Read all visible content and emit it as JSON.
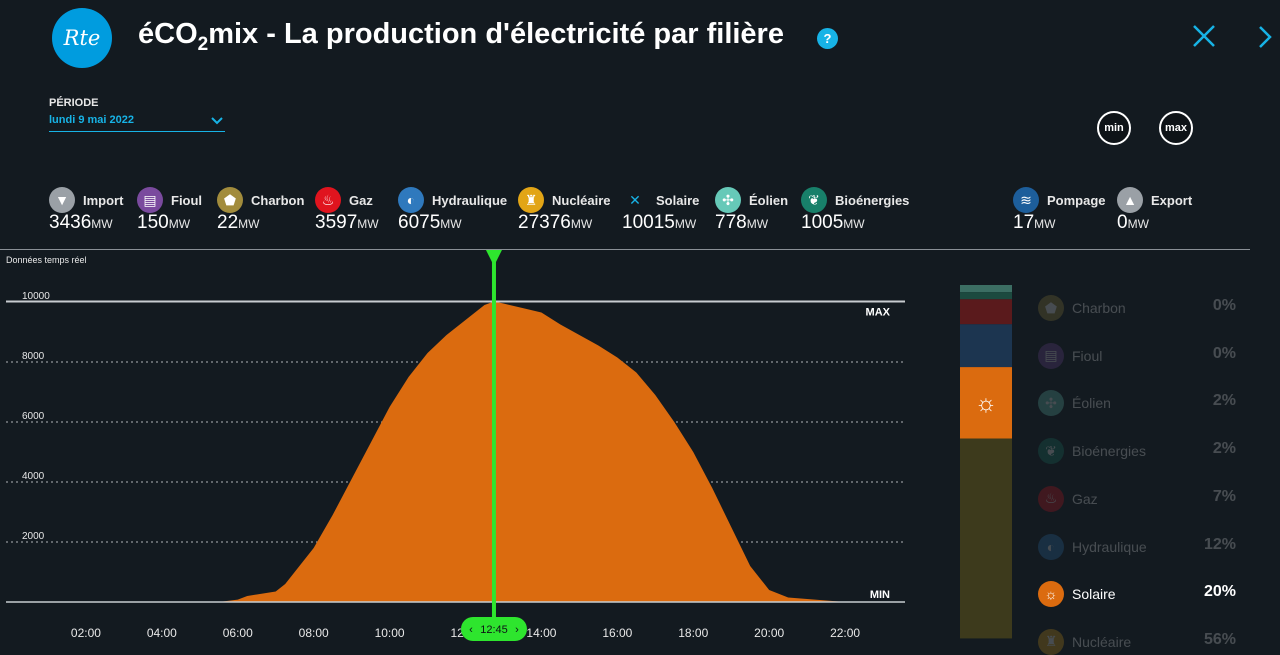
{
  "header": {
    "logo_text": "Rte",
    "title_pre": "éCO",
    "title_sub": "2",
    "title_post": "mix - La production d'électricité par filière",
    "help": "?"
  },
  "period": {
    "label": "PÉRIODE",
    "value": "lundi 9 mai 2022"
  },
  "buttons": {
    "min": "min",
    "max": "max"
  },
  "unit": "MW",
  "sources": [
    {
      "name": "Import",
      "value": "3436",
      "color": "#9aa0a6",
      "icon": "import-icon"
    },
    {
      "name": "Fioul",
      "value": "150",
      "color": "#7a4a9e",
      "icon": "fioul-icon"
    },
    {
      "name": "Charbon",
      "value": "22",
      "color": "#a28c3c",
      "icon": "charbon-icon"
    },
    {
      "name": "Gaz",
      "value": "3597",
      "color": "#e0141e",
      "icon": "gaz-icon"
    },
    {
      "name": "Hydraulique",
      "value": "6075",
      "color": "#2f79bd",
      "icon": "hydraulique-icon"
    },
    {
      "name": "Nucléaire",
      "value": "27376",
      "color": "#e2a516",
      "icon": "nucleaire-icon"
    },
    {
      "name": "Solaire",
      "value": "10015",
      "color": "#17b3e6",
      "icon": "solaire-icon"
    },
    {
      "name": "Éolien",
      "value": "778",
      "color": "#66c9b8",
      "icon": "eolien-icon"
    },
    {
      "name": "Bioénergies",
      "value": "1005",
      "color": "#18806a",
      "icon": "bioenergies-icon"
    },
    {
      "name": "Pompage",
      "value": "17",
      "color": "#1d5e9b",
      "icon": "pompage-icon"
    },
    {
      "name": "Export",
      "value": "0",
      "color": "#9aa0a6",
      "icon": "export-icon"
    }
  ],
  "chart_header": "Données temps réel",
  "cursor_time": "12:45",
  "chart_data": {
    "type": "area",
    "x": [
      "00:00",
      "00:30",
      "01:00",
      "01:30",
      "02:00",
      "02:30",
      "03:00",
      "03:30",
      "04:00",
      "04:30",
      "05:00",
      "05:30",
      "06:00",
      "06:15",
      "06:30",
      "07:00",
      "07:15",
      "07:30",
      "08:00",
      "08:30",
      "09:00",
      "09:30",
      "10:00",
      "10:30",
      "11:00",
      "11:30",
      "12:00",
      "12:15",
      "12:30",
      "12:45",
      "13:00",
      "13:30",
      "14:00",
      "14:30",
      "15:00",
      "15:30",
      "16:00",
      "16:30",
      "17:00",
      "17:30",
      "18:00",
      "18:30",
      "19:00",
      "19:30",
      "20:00",
      "20:30",
      "21:00",
      "21:30",
      "22:00",
      "22:30",
      "23:00",
      "23:30"
    ],
    "y": [
      0,
      0,
      0,
      0,
      0,
      0,
      0,
      0,
      0,
      0,
      0,
      0,
      80,
      200,
      250,
      350,
      600,
      1000,
      1800,
      2900,
      4100,
      5300,
      6500,
      7500,
      8300,
      8900,
      9400,
      9650,
      9900,
      10015,
      9950,
      9800,
      9650,
      9250,
      8900,
      8550,
      8150,
      7650,
      6900,
      6000,
      5000,
      3800,
      2500,
      1200,
      400,
      150,
      100,
      50,
      0,
      0,
      0,
      0
    ],
    "xticks": [
      "02:00",
      "04:00",
      "06:00",
      "08:00",
      "10:00",
      "12:00",
      "14:00",
      "16:00",
      "18:00",
      "20:00",
      "22:00"
    ],
    "yticks": [
      2000,
      4000,
      6000,
      8000,
      10000
    ],
    "ylim": [
      0,
      10000
    ],
    "max_label": "MAX",
    "min_label": "MIN",
    "max_value": 10015,
    "min_value": 0,
    "color": "#db6b0f",
    "grid": true
  },
  "legend": [
    {
      "name": "Charbon",
      "pct": "0%",
      "color": "#a28c3c",
      "icon": "charbon-icon",
      "active": false
    },
    {
      "name": "Fioul",
      "pct": "0%",
      "color": "#7a4a9e",
      "icon": "fioul-icon",
      "active": false
    },
    {
      "name": "Éolien",
      "pct": "2%",
      "color": "#66c9b8",
      "icon": "eolien-icon",
      "active": false
    },
    {
      "name": "Bioénergies",
      "pct": "2%",
      "color": "#18806a",
      "icon": "bioenergies-icon",
      "active": false
    },
    {
      "name": "Gaz",
      "pct": "7%",
      "color": "#e0141e",
      "icon": "gaz-icon",
      "active": false
    },
    {
      "name": "Hydraulique",
      "pct": "12%",
      "color": "#2f79bd",
      "icon": "hydraulique-icon",
      "active": false
    },
    {
      "name": "Solaire",
      "pct": "20%",
      "color": "#db6b0f",
      "icon": "solaire-icon",
      "active": true
    },
    {
      "name": "Nucléaire",
      "pct": "56%",
      "color": "#e2a516",
      "icon": "nucleaire-icon",
      "active": false
    }
  ],
  "stack_bar": [
    {
      "name": "Éolien",
      "pct": 2,
      "color": "#3c6e63"
    },
    {
      "name": "Bioénergies",
      "pct": 2,
      "color": "#1c4a3f"
    },
    {
      "name": "Gaz",
      "pct": 7,
      "color": "#5a1a1c"
    },
    {
      "name": "Hydraulique",
      "pct": 12,
      "color": "#1c3550"
    },
    {
      "name": "Solaire",
      "pct": 20,
      "color": "#db6b0f"
    },
    {
      "name": "Nucléaire",
      "pct": 56,
      "color": "#3d3a1c"
    }
  ]
}
